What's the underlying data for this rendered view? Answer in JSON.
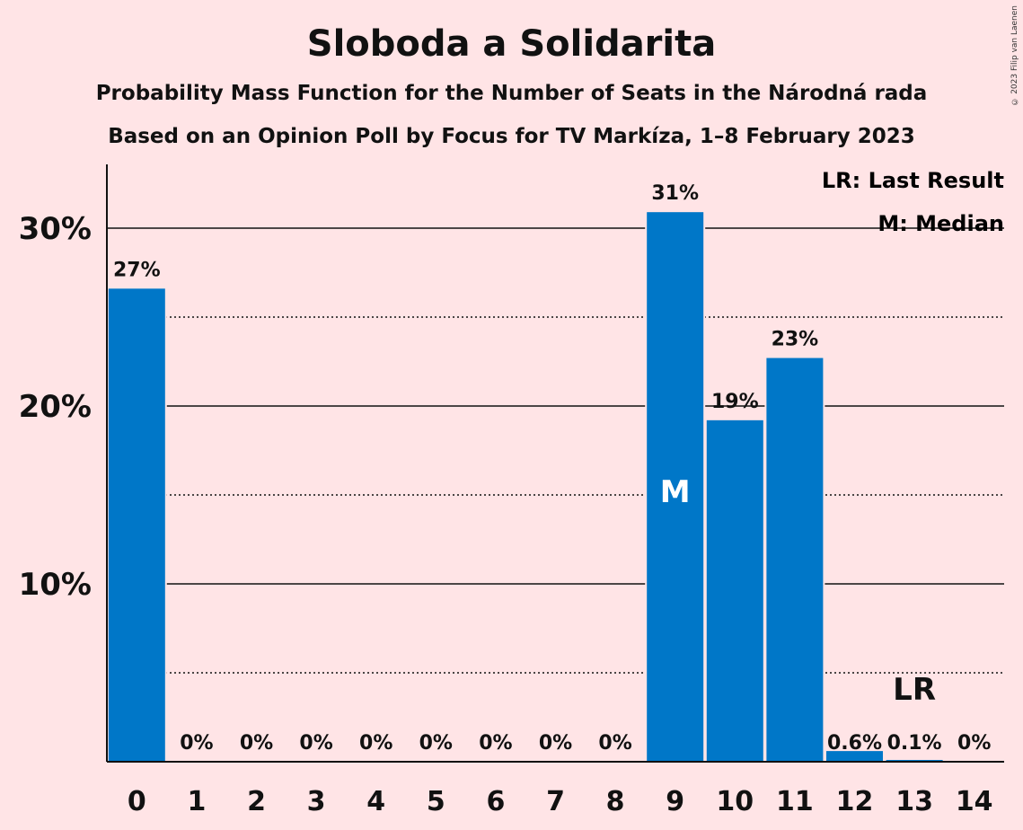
{
  "title": "Sloboda a Solidarita",
  "subtitle1": "Probability Mass Function for the Number of Seats in the Národná rada",
  "subtitle2": "Based on an Opinion Poll by Focus for TV Markíza, 1–8 February 2023",
  "copyright": "© 2023 Filip van Laenen",
  "legend": {
    "last_result": "LR: Last Result",
    "median": "M: Median"
  },
  "colors": {
    "background": "#FFE4E6",
    "bar": "#0077C8"
  },
  "chart_data": {
    "type": "bar",
    "categories": [
      "0",
      "1",
      "2",
      "3",
      "4",
      "5",
      "6",
      "7",
      "8",
      "9",
      "10",
      "11",
      "12",
      "13",
      "14"
    ],
    "values": [
      26.6,
      0,
      0,
      0,
      0,
      0,
      0,
      0,
      0,
      30.9,
      19.2,
      22.7,
      0.6,
      0.1,
      0
    ],
    "labels": [
      "27%",
      "0%",
      "0%",
      "0%",
      "0%",
      "0%",
      "0%",
      "0%",
      "0%",
      "31%",
      "19%",
      "23%",
      "0.6%",
      "0.1%",
      "0%"
    ],
    "ylim": [
      0,
      33.5
    ],
    "yticks": [
      10,
      20,
      30
    ],
    "ytick_labels": [
      "10%",
      "20%",
      "30%"
    ],
    "minor_gridlines": [
      5,
      15,
      25
    ],
    "median_index": 9,
    "median_marker": "M",
    "last_result_index": 13,
    "last_result_marker": "LR",
    "grid": true,
    "legend_position": "top-right"
  }
}
